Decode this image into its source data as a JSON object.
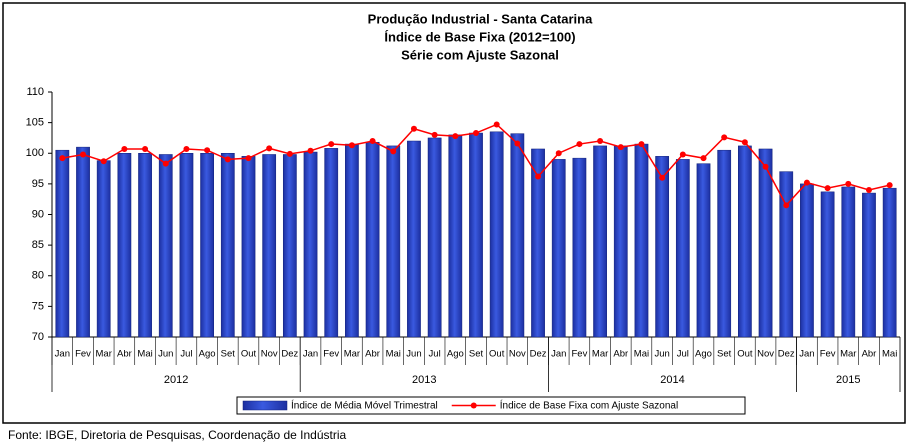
{
  "chart_data": {
    "type": "bar-line",
    "title": "Produção Industrial - Santa Catarina",
    "subtitles": [
      "Índice de Base Fixa (2012=100)",
      "Série com Ajuste Sazonal"
    ],
    "categories": [
      "Jan",
      "Fev",
      "Mar",
      "Abr",
      "Mai",
      "Jun",
      "Jul",
      "Ago",
      "Set",
      "Out",
      "Nov",
      "Dez",
      "Jan",
      "Fev",
      "Mar",
      "Abr",
      "Mai",
      "Jun",
      "Jul",
      "Ago",
      "Set",
      "Out",
      "Nov",
      "Dez",
      "Jan",
      "Fev",
      "Mar",
      "Abr",
      "Mai",
      "Jun",
      "Jul",
      "Ago",
      "Set",
      "Out",
      "Nov",
      "Dez",
      "Jan",
      "Fev",
      "Mar",
      "Abr",
      "Mai"
    ],
    "year_labels": [
      "2012",
      "2013",
      "2014",
      "2015"
    ],
    "series": [
      {
        "name": "Índice de Média Móvel Trimestral",
        "kind": "bar",
        "color": "#3a5ae0",
        "values": [
          100.5,
          101,
          98.8,
          100,
          100,
          99.8,
          100,
          100,
          100,
          99.5,
          99.8,
          99.8,
          100.2,
          100.8,
          101.5,
          101.8,
          101.2,
          102,
          102.5,
          103,
          103.3,
          103.5,
          103.2,
          100.7,
          99,
          99.2,
          101.2,
          101.2,
          101.5,
          99.5,
          99,
          98.3,
          100.5,
          101.2,
          100.7,
          97,
          95,
          93.7,
          94.5,
          93.5,
          94.3
        ]
      },
      {
        "name": "Índice de Base Fixa com Ajuste Sazonal",
        "kind": "line",
        "color": "#ff0000",
        "values": [
          99.2,
          99.8,
          98.7,
          100.7,
          100.7,
          98.3,
          100.7,
          100.5,
          99,
          99.2,
          100.8,
          99.9,
          100.4,
          101.5,
          101.3,
          102,
          100.3,
          104,
          103,
          102.8,
          103.3,
          104.7,
          101.6,
          96.2,
          100,
          101.5,
          102,
          101,
          101.5,
          96,
          99.8,
          99.2,
          102.6,
          101.8,
          97.8,
          91.5,
          95.2,
          94.3,
          95,
          94,
          94.8
        ]
      }
    ],
    "ylim": [
      70,
      110
    ],
    "yticks": [
      70,
      75,
      80,
      85,
      90,
      95,
      100,
      105,
      110
    ],
    "grid": false
  },
  "source": "Fonte: IBGE, Diretoria de Pesquisas, Coordenação de Indústria"
}
